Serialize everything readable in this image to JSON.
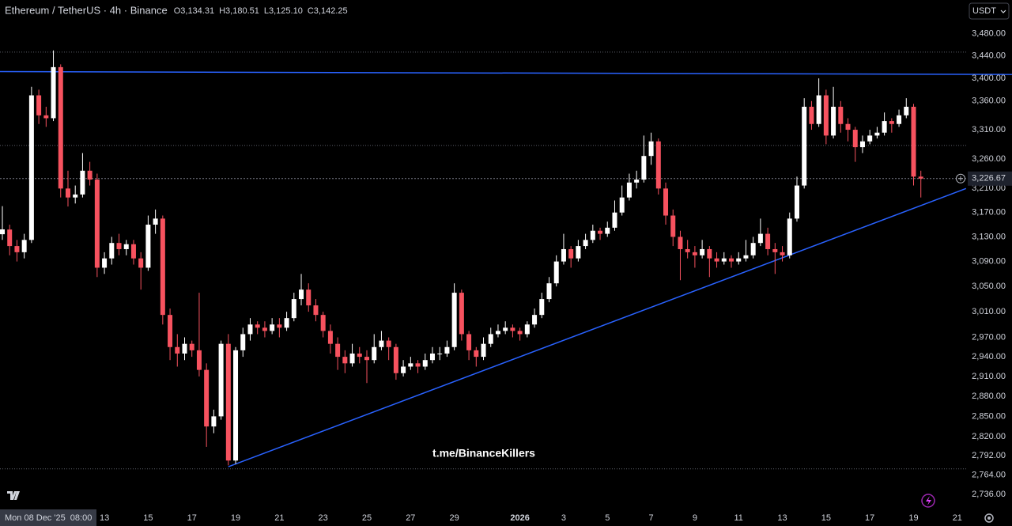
{
  "chart_data": {
    "type": "candlestick",
    "title": "Ethereum / TetherUS · 4h · Binance",
    "ohlc_legend": [
      {
        "label": "O",
        "value": "3,134.31"
      },
      {
        "label": "H",
        "value": "3,180.51"
      },
      {
        "label": "L",
        "value": "3,125.10"
      },
      {
        "label": "C",
        "value": "3,142.25"
      }
    ],
    "currency": "USDT",
    "watermark": "t.me/BinanceKillers",
    "log_scale": true,
    "up_color": "#ffffff",
    "down_color": "#f7525f",
    "line_color": "#2962ff",
    "ylim": [
      2716,
      3542
    ],
    "yticks": [
      {
        "value": 3480,
        "label": "3,480.00"
      },
      {
        "value": 3440,
        "label": "3,440.00"
      },
      {
        "value": 3400,
        "label": "3,400.00"
      },
      {
        "value": 3360,
        "label": "3,360.00"
      },
      {
        "value": 3310,
        "label": "3,310.00"
      },
      {
        "value": 3260,
        "label": "3,260.00"
      },
      {
        "value": 3210,
        "label": "3,210.00"
      },
      {
        "value": 3170,
        "label": "3,170.00"
      },
      {
        "value": 3130,
        "label": "3,130.00"
      },
      {
        "value": 3090,
        "label": "3,090.00"
      },
      {
        "value": 3050,
        "label": "3,050.00"
      },
      {
        "value": 3010,
        "label": "3,010.00"
      },
      {
        "value": 2970,
        "label": "2,970.00"
      },
      {
        "value": 2940,
        "label": "2,940.00"
      },
      {
        "value": 2910,
        "label": "2,910.00"
      },
      {
        "value": 2880,
        "label": "2,880.00"
      },
      {
        "value": 2850,
        "label": "2,850.00"
      },
      {
        "value": 2820,
        "label": "2,820.00"
      },
      {
        "value": 2792,
        "label": "2,792.00"
      },
      {
        "value": 2764,
        "label": "2,764.00"
      },
      {
        "value": 2736,
        "label": "2,736.00"
      }
    ],
    "last_price": {
      "value": 3226.67,
      "label": "3,226.67"
    },
    "hlines": [
      3447,
      3283,
      2773
    ],
    "lines": [
      {
        "x": [
          -0.33,
          138.5
        ],
        "y": [
          3412,
          3407
        ]
      },
      {
        "x": [
          31,
          132.2
        ],
        "y": [
          2776,
          3210
        ]
      }
    ],
    "categories": [
      "Mon 08 Dec '25  08:00",
      null,
      null,
      null,
      null,
      null,
      null,
      null,
      null,
      null,
      null,
      null,
      null,
      null,
      "13",
      null,
      null,
      null,
      null,
      null,
      "15",
      null,
      null,
      null,
      null,
      null,
      "17",
      null,
      null,
      null,
      null,
      null,
      "19",
      null,
      null,
      null,
      null,
      null,
      "21",
      null,
      null,
      null,
      null,
      null,
      "23",
      null,
      null,
      null,
      null,
      null,
      "25",
      null,
      null,
      null,
      null,
      null,
      "27",
      null,
      null,
      null,
      null,
      null,
      "29",
      null,
      null,
      null,
      null,
      null,
      null,
      null,
      null,
      "2026",
      null,
      null,
      null,
      null,
      null,
      "3",
      null,
      null,
      null,
      null,
      null,
      "5",
      null,
      null,
      null,
      null,
      null,
      "7",
      null,
      null,
      null,
      null,
      null,
      "9",
      null,
      null,
      null,
      null,
      null,
      "11",
      null,
      null,
      null,
      null,
      null,
      "13",
      null,
      null,
      null,
      null,
      null,
      "15",
      null,
      null,
      null,
      null,
      null,
      "17",
      null,
      null,
      null,
      null,
      null,
      "19",
      null,
      null,
      null,
      null,
      null,
      "21"
    ],
    "candles": [
      [
        3134.31,
        3180.51,
        3125.1,
        3142.25
      ],
      [
        3142,
        3150,
        3100,
        3115
      ],
      [
        3115,
        3125,
        3090,
        3105
      ],
      [
        3105,
        3135,
        3095,
        3125
      ],
      [
        3125,
        3385,
        3120,
        3370
      ],
      [
        3370,
        3380,
        3320,
        3335
      ],
      [
        3335,
        3350,
        3315,
        3330
      ],
      [
        3330,
        3450,
        3325,
        3420
      ],
      [
        3420,
        3425,
        3195,
        3210
      ],
      [
        3210,
        3240,
        3180,
        3195
      ],
      [
        3195,
        3215,
        3185,
        3200
      ],
      [
        3200,
        3270,
        3195,
        3240
      ],
      [
        3240,
        3255,
        3215,
        3225
      ],
      [
        3225,
        3235,
        3065,
        3080
      ],
      [
        3080,
        3105,
        3070,
        3095
      ],
      [
        3095,
        3130,
        3085,
        3120
      ],
      [
        3120,
        3135,
        3100,
        3110
      ],
      [
        3110,
        3125,
        3100,
        3118
      ],
      [
        3118,
        3125,
        3085,
        3095
      ],
      [
        3095,
        3105,
        3045,
        3080
      ],
      [
        3080,
        3165,
        3075,
        3150
      ],
      [
        3150,
        3175,
        3135,
        3160
      ],
      [
        3160,
        3165,
        2990,
        3005
      ],
      [
        3005,
        3015,
        2935,
        2955
      ],
      [
        2955,
        2975,
        2925,
        2945
      ],
      [
        2945,
        2970,
        2935,
        2960
      ],
      [
        2960,
        2965,
        2940,
        2950
      ],
      [
        2950,
        3040,
        2910,
        2920
      ],
      [
        2920,
        2930,
        2805,
        2835
      ],
      [
        2835,
        2860,
        2825,
        2850
      ],
      [
        2850,
        2965,
        2845,
        2960
      ],
      [
        2960,
        2975,
        2778,
        2785
      ],
      [
        2785,
        2955,
        2780,
        2950
      ],
      [
        2950,
        2985,
        2940,
        2975
      ],
      [
        2975,
        3000,
        2965,
        2990
      ],
      [
        2990,
        2995,
        2975,
        2985
      ],
      [
        2985,
        2995,
        2970,
        2980
      ],
      [
        2980,
        3000,
        2975,
        2990
      ],
      [
        2990,
        3000,
        2970,
        2985
      ],
      [
        2985,
        3010,
        2980,
        3000
      ],
      [
        3000,
        3040,
        2995,
        3030
      ],
      [
        3030,
        3070,
        3020,
        3045
      ],
      [
        3045,
        3055,
        3010,
        3020
      ],
      [
        3020,
        3030,
        2995,
        3005
      ],
      [
        3005,
        3010,
        2970,
        2980
      ],
      [
        2980,
        2990,
        2945,
        2960
      ],
      [
        2960,
        2970,
        2920,
        2940
      ],
      [
        2940,
        2950,
        2915,
        2930
      ],
      [
        2930,
        2960,
        2925,
        2945
      ],
      [
        2945,
        2955,
        2930,
        2940
      ],
      [
        2940,
        2950,
        2900,
        2935
      ],
      [
        2935,
        2975,
        2930,
        2955
      ],
      [
        2955,
        2980,
        2950,
        2965
      ],
      [
        2965,
        2970,
        2935,
        2955
      ],
      [
        2955,
        2960,
        2905,
        2915
      ],
      [
        2915,
        2935,
        2910,
        2925
      ],
      [
        2925,
        2940,
        2920,
        2930
      ],
      [
        2930,
        2935,
        2915,
        2925
      ],
      [
        2925,
        2945,
        2920,
        2935
      ],
      [
        2935,
        2955,
        2930,
        2945
      ],
      [
        2945,
        2955,
        2935,
        2945
      ],
      [
        2945,
        2965,
        2940,
        2955
      ],
      [
        2955,
        3055,
        2950,
        3040
      ],
      [
        3040,
        3045,
        2965,
        2975
      ],
      [
        2975,
        2980,
        2935,
        2950
      ],
      [
        2950,
        2955,
        2925,
        2940
      ],
      [
        2940,
        2970,
        2935,
        2960
      ],
      [
        2960,
        2985,
        2955,
        2975
      ],
      [
        2975,
        2990,
        2970,
        2980
      ],
      [
        2980,
        2995,
        2975,
        2985
      ],
      [
        2985,
        2990,
        2970,
        2980
      ],
      [
        2980,
        2985,
        2965,
        2975
      ],
      [
        2975,
        2995,
        2970,
        2990
      ],
      [
        2990,
        3015,
        2985,
        3005
      ],
      [
        3005,
        3040,
        3000,
        3030
      ],
      [
        3030,
        3065,
        3025,
        3055
      ],
      [
        3055,
        3100,
        3050,
        3090
      ],
      [
        3090,
        3135,
        3085,
        3110
      ],
      [
        3110,
        3115,
        3080,
        3095
      ],
      [
        3095,
        3125,
        3090,
        3115
      ],
      [
        3115,
        3135,
        3110,
        3125
      ],
      [
        3125,
        3150,
        3120,
        3140
      ],
      [
        3140,
        3145,
        3125,
        3135
      ],
      [
        3135,
        3155,
        3130,
        3145
      ],
      [
        3145,
        3190,
        3140,
        3170
      ],
      [
        3170,
        3215,
        3165,
        3195
      ],
      [
        3195,
        3235,
        3190,
        3220
      ],
      [
        3220,
        3240,
        3210,
        3225
      ],
      [
        3225,
        3300,
        3220,
        3265
      ],
      [
        3265,
        3305,
        3250,
        3290
      ],
      [
        3290,
        3295,
        3200,
        3210
      ],
      [
        3210,
        3220,
        3150,
        3165
      ],
      [
        3165,
        3175,
        3115,
        3130
      ],
      [
        3130,
        3140,
        3060,
        3110
      ],
      [
        3110,
        3125,
        3095,
        3105
      ],
      [
        3105,
        3115,
        3080,
        3100
      ],
      [
        3100,
        3125,
        3095,
        3110
      ],
      [
        3110,
        3115,
        3065,
        3095
      ],
      [
        3095,
        3105,
        3080,
        3090
      ],
      [
        3090,
        3105,
        3085,
        3095
      ],
      [
        3095,
        3100,
        3080,
        3090
      ],
      [
        3090,
        3105,
        3085,
        3095
      ],
      [
        3095,
        3125,
        3090,
        3100
      ],
      [
        3100,
        3130,
        3095,
        3120
      ],
      [
        3120,
        3160,
        3115,
        3135
      ],
      [
        3135,
        3145,
        3100,
        3110
      ],
      [
        3110,
        3120,
        3070,
        3105
      ],
      [
        3105,
        3115,
        3090,
        3100
      ],
      [
        3100,
        3170,
        3095,
        3160
      ],
      [
        3160,
        3230,
        3155,
        3215
      ],
      [
        3215,
        3365,
        3210,
        3350
      ],
      [
        3350,
        3360,
        3310,
        3320
      ],
      [
        3320,
        3400,
        3315,
        3370
      ],
      [
        3370,
        3380,
        3285,
        3300
      ],
      [
        3300,
        3385,
        3295,
        3350
      ],
      [
        3350,
        3360,
        3305,
        3320
      ],
      [
        3320,
        3330,
        3290,
        3310
      ],
      [
        3310,
        3315,
        3255,
        3280
      ],
      [
        3280,
        3300,
        3270,
        3290
      ],
      [
        3290,
        3310,
        3285,
        3300
      ],
      [
        3300,
        3315,
        3295,
        3305
      ],
      [
        3305,
        3340,
        3300,
        3325
      ],
      [
        3325,
        3330,
        3305,
        3320
      ],
      [
        3320,
        3345,
        3315,
        3335
      ],
      [
        3335,
        3365,
        3330,
        3350
      ],
      [
        3350,
        3355,
        3215,
        3230
      ],
      [
        3230,
        3240,
        3195,
        3226.67
      ],
      null,
      null,
      null,
      null,
      null
    ]
  }
}
